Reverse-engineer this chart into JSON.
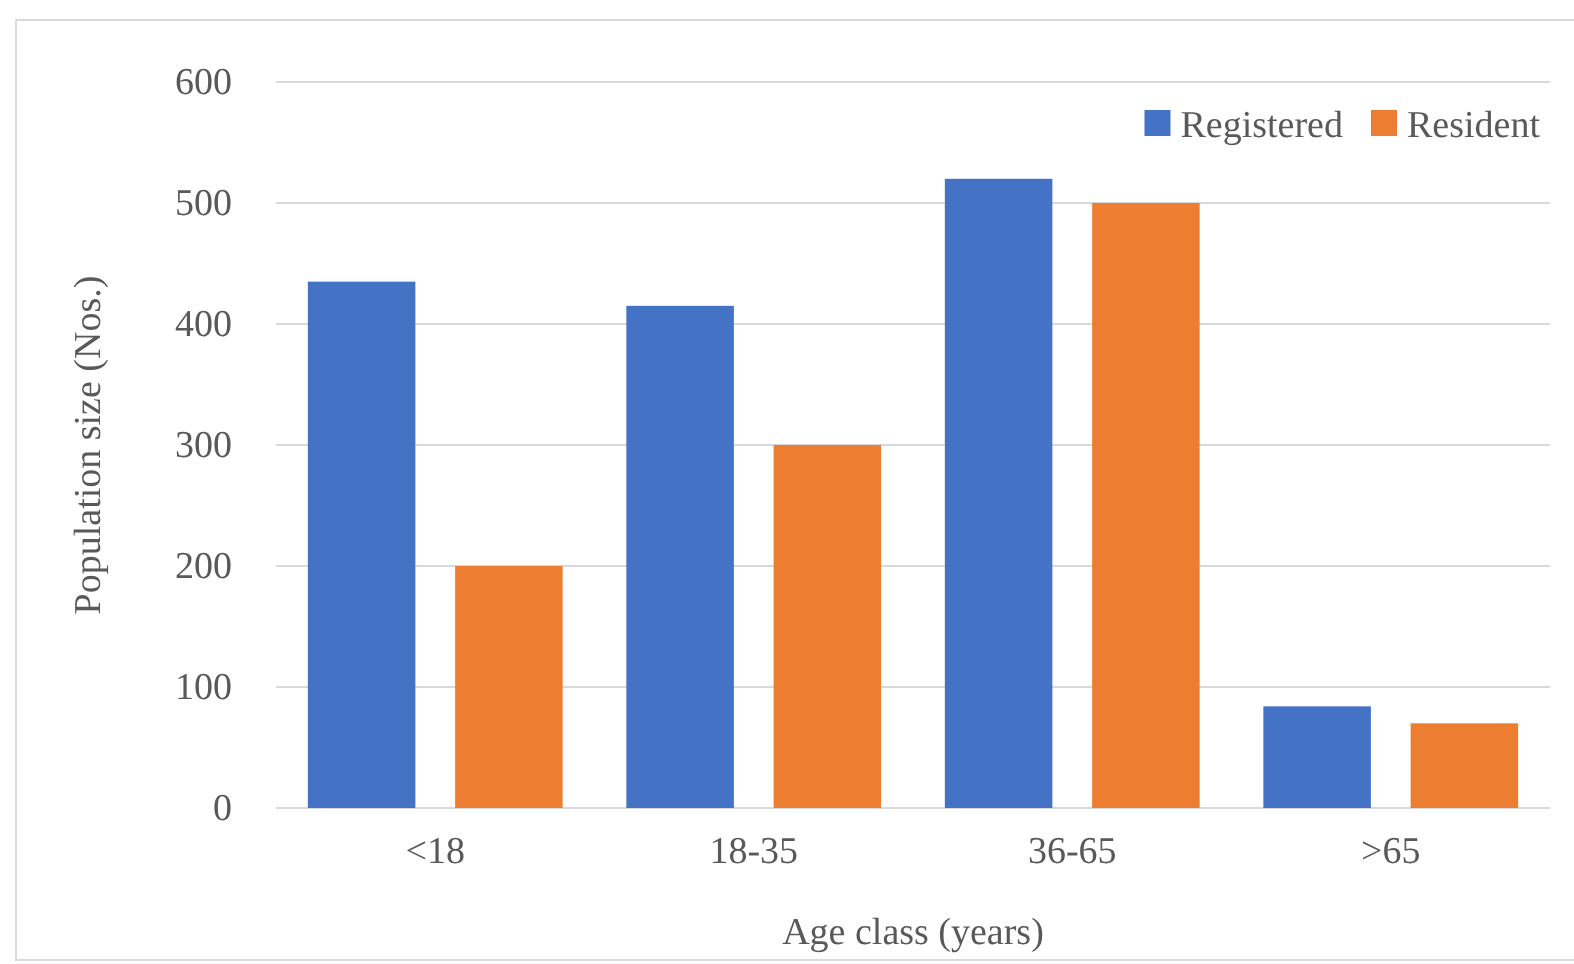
{
  "chart_data": {
    "type": "bar",
    "xlabel": "Age class (years)",
    "ylabel": "Population size (Nos.)",
    "categories": [
      "<18",
      "18-35",
      "36-65",
      ">65"
    ],
    "series": [
      {
        "name": "Registered",
        "color": "#4472c4",
        "values": [
          435,
          415,
          520,
          84
        ]
      },
      {
        "name": "Resident",
        "color": "#ed7d31",
        "values": [
          200,
          300,
          500,
          70
        ]
      }
    ],
    "ylim": [
      0,
      600
    ],
    "yticks": [
      0,
      100,
      200,
      300,
      400,
      500,
      600
    ],
    "grid": "y",
    "legend": "top right"
  }
}
